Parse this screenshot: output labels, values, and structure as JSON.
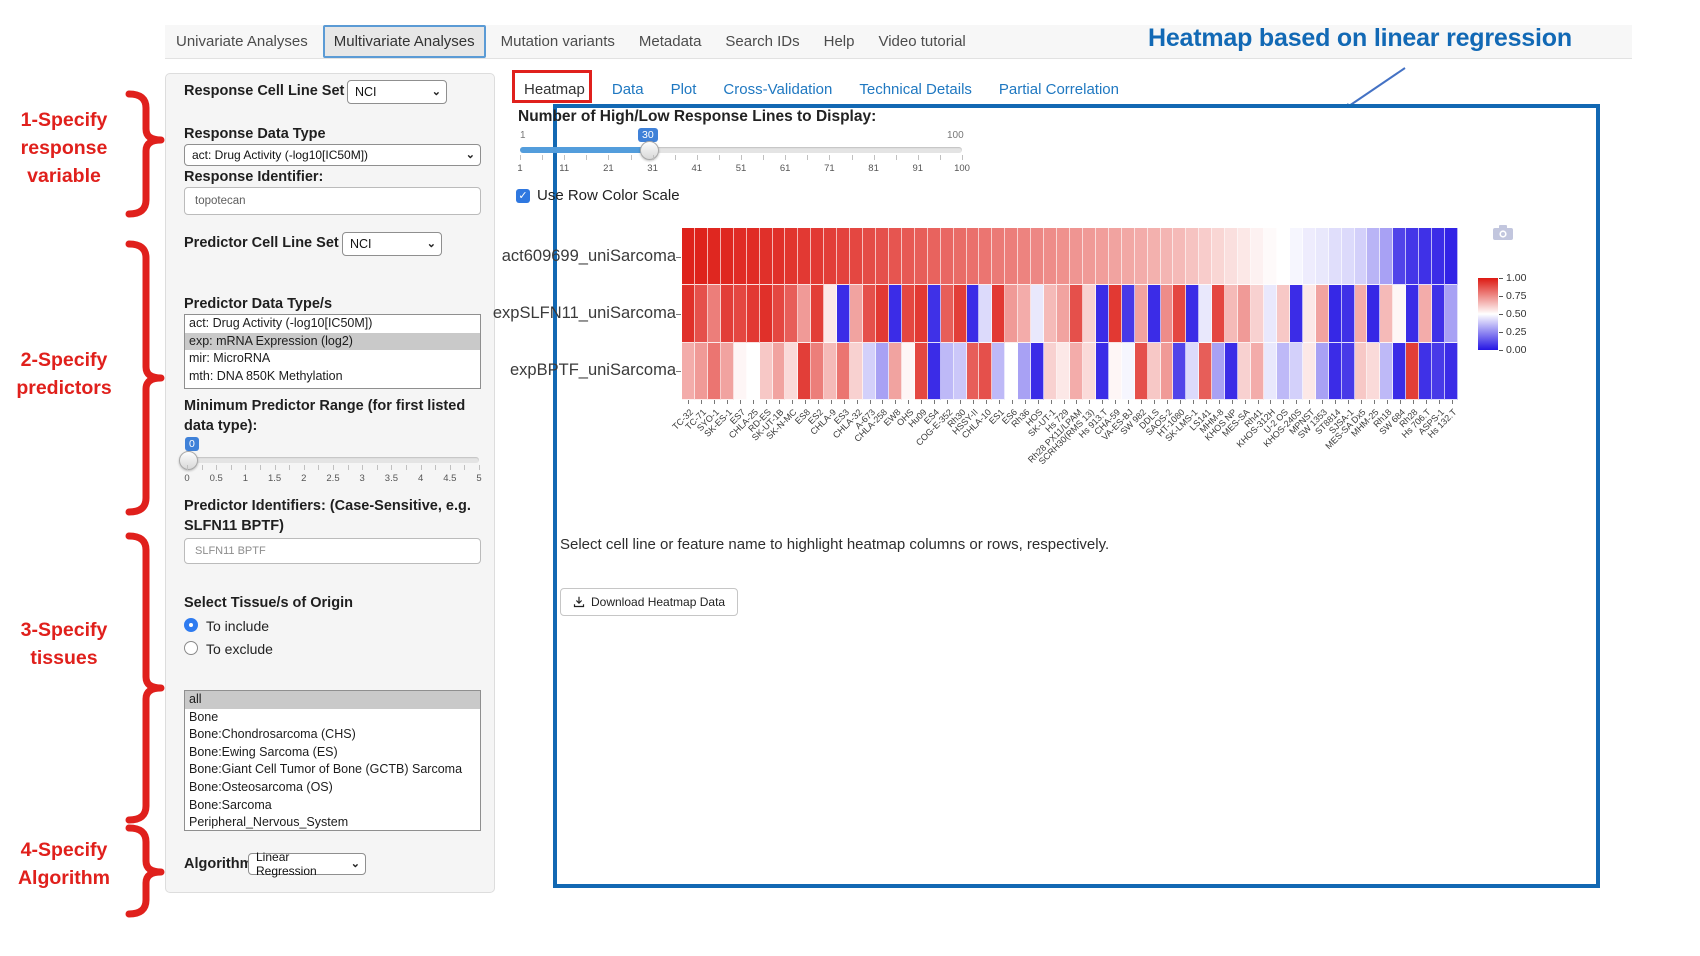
{
  "nav": {
    "items": [
      "Univariate Analyses",
      "Multivariate Analyses",
      "Mutation variants",
      "Metadata",
      "Search IDs",
      "Help",
      "Video tutorial"
    ],
    "active": "Multivariate Analyses"
  },
  "annotations": {
    "heading": "Heatmap based on linear regression",
    "steps": [
      {
        "lines": [
          "1-Specify",
          "response",
          "variable"
        ]
      },
      {
        "lines": [
          "2-Specify",
          "predictors"
        ]
      },
      {
        "lines": [
          "3-Specify",
          "tissues"
        ]
      },
      {
        "lines": [
          "4-Specify",
          "Algorithm"
        ]
      }
    ],
    "red": "#e0201c",
    "blue": "#1269b5"
  },
  "sidebar": {
    "response_cell_line_set": {
      "label": "Response Cell Line Set",
      "value": "NCI"
    },
    "response_data_type": {
      "label": "Response Data Type",
      "value": "act: Drug Activity (-log10[IC50M])"
    },
    "response_identifier": {
      "label": "Response Identifier:",
      "value": "topotecan"
    },
    "predictor_cell_line_set": {
      "label": "Predictor Cell Line Set",
      "value": "NCI"
    },
    "predictor_data_types": {
      "label": "Predictor Data Type/s",
      "options": [
        "act: Drug Activity (-log10[IC50M])",
        "exp: mRNA Expression (log2)",
        "mir: MicroRNA",
        "mth: DNA 850K Methylation"
      ],
      "selected": "exp: mRNA Expression (log2)"
    },
    "min_predictor_range": {
      "label": "Minimum Predictor Range (for first listed data type):",
      "value": "0",
      "min": 0,
      "max": 5,
      "ticks": [
        "0",
        "0.5",
        "1",
        "1.5",
        "2",
        "2.5",
        "3",
        "3.5",
        "4",
        "4.5",
        "5"
      ]
    },
    "predictor_identifiers": {
      "label": "Predictor Identifiers: (Case-Sensitive, e.g. SLFN11 BPTF)",
      "value": "SLFN11 BPTF"
    },
    "tissues": {
      "label": "Select Tissue/s of Origin",
      "include_label": "To include",
      "exclude_label": "To exclude",
      "mode": "include",
      "options": [
        "all",
        "Bone",
        "Bone:Chondrosarcoma (CHS)",
        "Bone:Ewing Sarcoma (ES)",
        "Bone:Giant Cell Tumor of Bone (GCTB) Sarcoma",
        "Bone:Osteosarcoma (OS)",
        "Bone:Sarcoma",
        "Peripheral_Nervous_System"
      ],
      "selected": "all"
    },
    "algorithm": {
      "label": "Algorithm",
      "value": "Linear Regression"
    }
  },
  "main": {
    "tabs": [
      "Heatmap",
      "Data",
      "Plot",
      "Cross-Validation",
      "Technical Details",
      "Partial Correlation"
    ],
    "active_tab": "Heatmap",
    "lines_slider": {
      "label": "Number of High/Low Response Lines to Display:",
      "min_label": "1",
      "max_label": "100",
      "value": "30",
      "ticks": [
        "1",
        "11",
        "21",
        "31",
        "41",
        "51",
        "61",
        "71",
        "81",
        "91",
        "100"
      ]
    },
    "row_color_scale": {
      "label": "Use Row Color Scale",
      "checked": true
    },
    "hint": "Select cell line or feature name to highlight heatmap columns or rows, respectively.",
    "download_label": "Download Heatmap Data"
  },
  "chart_data": {
    "type": "heatmap",
    "rows": [
      "act609699_uniSarcoma",
      "expSLFN11_uniSarcoma",
      "expBPTF_uniSarcoma"
    ],
    "columns": [
      "TC-32",
      "TC-71",
      "SYO-1",
      "SK-ES-1",
      "ES7",
      "CHLA-25",
      "RD-ES",
      "SK-UT-1B",
      "SK-N-MC",
      "ES8",
      "ES2",
      "CHLA-9",
      "ES3",
      "CHLA-32",
      "A-673",
      "CHLA-258",
      "EW8",
      "OHS",
      "Hu09",
      "ES4",
      "COG-E-352",
      "Rh30",
      "HSSY-II",
      "CHLA-10",
      "ES1",
      "ES6",
      "Rh36",
      "HOS",
      "SK-UT-1",
      "Hs 729",
      "Rh28 PX11/LPAM",
      "SCRH30(RMS 13)",
      "Hs 913.T",
      "CHA-59",
      "VA-ES-BJ",
      "SW 982",
      "DDLS",
      "SAOS-2",
      "HT-1080",
      "SK-LMS-1",
      "LS141",
      "MHM-8",
      "KHOS NP",
      "MES-SA",
      "Rh41",
      "KHOS-312H",
      "U-2 OS",
      "KHOS-240S",
      "MPNST",
      "SW 1353",
      "ST8814",
      "SJSA-1",
      "MES-SA Dx5",
      "MHM-25",
      "Rh18",
      "SW 684",
      "Rh28",
      "Hs 706.T",
      "ASPS-1",
      "Hs 132.T"
    ],
    "values": [
      [
        0.98,
        0.98,
        0.97,
        0.97,
        0.96,
        0.96,
        0.95,
        0.95,
        0.94,
        0.93,
        0.93,
        0.92,
        0.91,
        0.9,
        0.89,
        0.88,
        0.87,
        0.86,
        0.85,
        0.84,
        0.83,
        0.82,
        0.81,
        0.8,
        0.79,
        0.78,
        0.77,
        0.76,
        0.75,
        0.74,
        0.73,
        0.72,
        0.71,
        0.7,
        0.69,
        0.68,
        0.67,
        0.66,
        0.65,
        0.63,
        0.61,
        0.59,
        0.57,
        0.55,
        0.53,
        0.51,
        0.5,
        0.48,
        0.46,
        0.45,
        0.43,
        0.42,
        0.4,
        0.34,
        0.3,
        0.1,
        0.07,
        0.06,
        0.05,
        0.03
      ],
      [
        0.95,
        0.88,
        0.78,
        0.92,
        0.9,
        0.93,
        0.95,
        0.9,
        0.85,
        0.72,
        0.92,
        0.55,
        0.05,
        0.7,
        0.88,
        0.93,
        0.05,
        0.9,
        0.93,
        0.06,
        0.85,
        0.92,
        0.05,
        0.42,
        0.93,
        0.72,
        0.68,
        0.45,
        0.65,
        0.7,
        0.88,
        0.6,
        0.05,
        0.93,
        0.08,
        0.7,
        0.05,
        0.75,
        0.9,
        0.05,
        0.45,
        0.9,
        0.65,
        0.72,
        0.6,
        0.45,
        0.62,
        0.05,
        0.55,
        0.7,
        0.04,
        0.06,
        0.68,
        0.04,
        0.65,
        0.52,
        0.05,
        0.68,
        0.06,
        0.3
      ],
      [
        0.68,
        0.72,
        0.8,
        0.7,
        0.52,
        0.5,
        0.62,
        0.7,
        0.58,
        0.92,
        0.78,
        0.65,
        0.8,
        0.6,
        0.4,
        0.3,
        0.7,
        0.52,
        0.9,
        0.05,
        0.35,
        0.38,
        0.85,
        0.88,
        0.35,
        0.5,
        0.3,
        0.05,
        0.6,
        0.55,
        0.68,
        0.58,
        0.05,
        0.52,
        0.48,
        0.88,
        0.62,
        0.72,
        0.1,
        0.42,
        0.85,
        0.3,
        0.05,
        0.6,
        0.68,
        0.45,
        0.35,
        0.4,
        0.55,
        0.3,
        0.05,
        0.08,
        0.62,
        0.58,
        0.35,
        0.05,
        0.92,
        0.06,
        0.08,
        0.05
      ]
    ],
    "colorscale": {
      "low_color": "#2515e4",
      "mid_color": "#ffffff",
      "high_color": "#dd1912",
      "min": 0,
      "max": 1
    },
    "legend_ticks": [
      "1.00",
      "0.75",
      "0.50",
      "0.25",
      "0.00"
    ],
    "legend_position": "right"
  }
}
